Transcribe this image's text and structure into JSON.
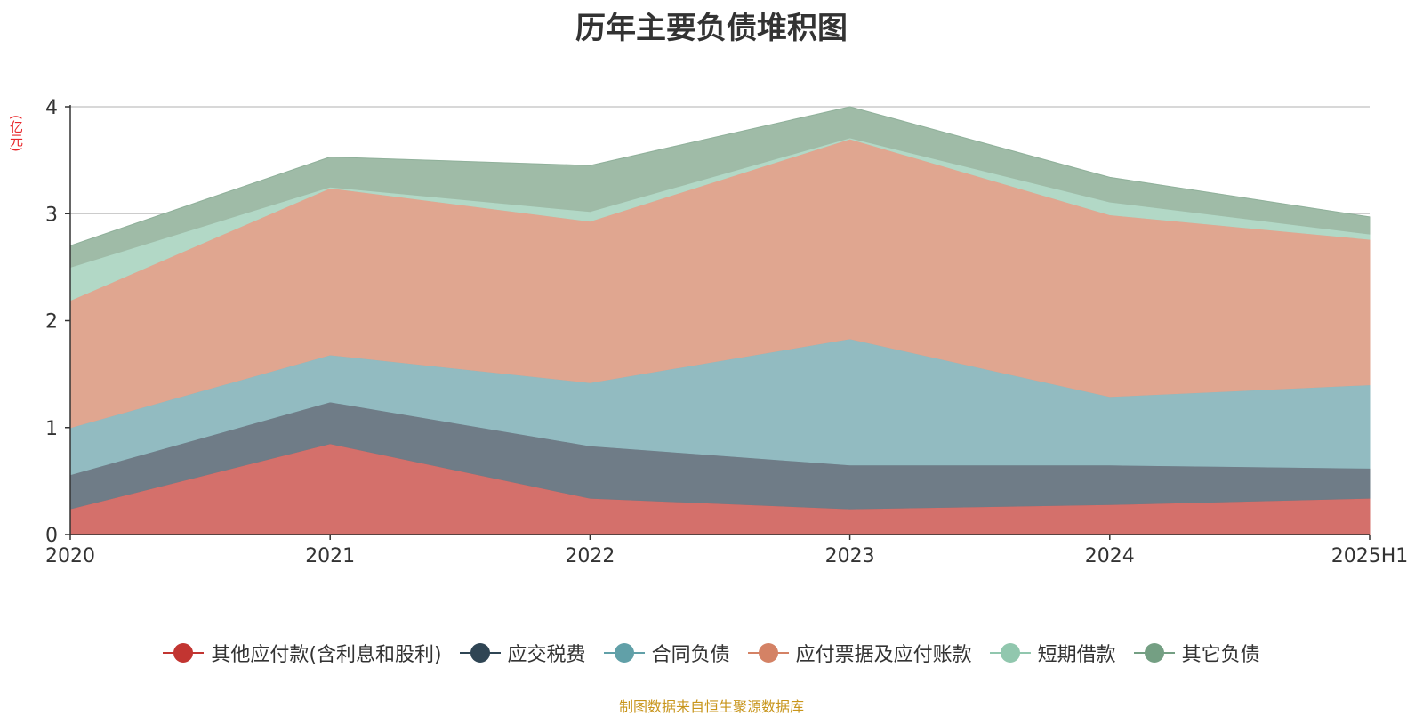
{
  "chart_data": {
    "type": "area",
    "stacked": true,
    "title": "历年主要负债堆积图",
    "unit_label": "(亿元)",
    "source": "制图数据来自恒生聚源数据库",
    "categories": [
      "2020",
      "2021",
      "2022",
      "2023",
      "2024",
      "2025H1"
    ],
    "ylim": [
      0,
      4
    ],
    "yticks": [
      "0",
      "1",
      "2",
      "3",
      "4"
    ],
    "grid": true,
    "legend_position": "bottom",
    "series": [
      {
        "name": "其他应付款(含利息和股利)",
        "color": "#c23531",
        "fill": "#d4706b",
        "values": [
          0.24,
          0.85,
          0.34,
          0.24,
          0.28,
          0.34
        ]
      },
      {
        "name": "应交税费",
        "color": "#2f4554",
        "fill": "#6f7c87",
        "values": [
          0.32,
          0.39,
          0.49,
          0.41,
          0.37,
          0.28
        ]
      },
      {
        "name": "合同负债",
        "color": "#61a0a8",
        "fill": "#92bbc1",
        "values": [
          0.44,
          0.44,
          0.59,
          1.18,
          0.64,
          0.78
        ]
      },
      {
        "name": "应付票据及应付账款",
        "color": "#d48265",
        "fill": "#e0a690",
        "values": [
          1.19,
          1.56,
          1.51,
          1.87,
          1.7,
          1.36
        ]
      },
      {
        "name": "短期借款",
        "color": "#91c7ae",
        "fill": "#b2d8c6",
        "values": [
          0.31,
          0.01,
          0.09,
          0.01,
          0.12,
          0.05
        ]
      },
      {
        "name": "其它负债",
        "color": "#749f83",
        "fill": "#9fbba7",
        "values": [
          0.2,
          0.28,
          0.43,
          0.29,
          0.23,
          0.16
        ]
      }
    ]
  }
}
